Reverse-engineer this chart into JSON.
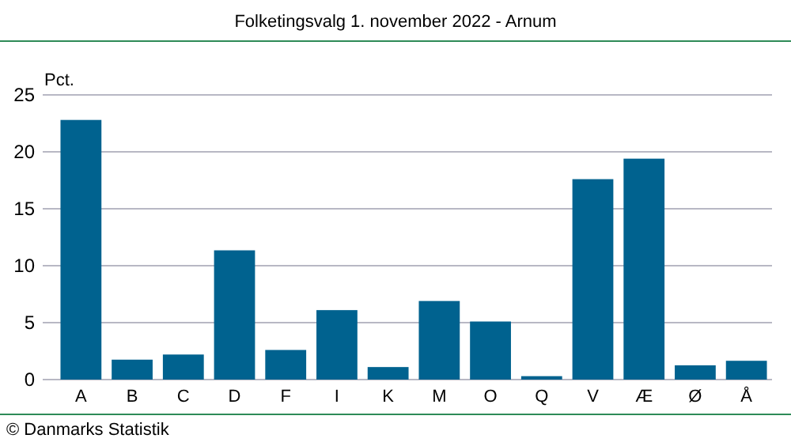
{
  "chart_data": {
    "type": "bar",
    "title": "Folketingsvalg 1. november 2022 - Arnum",
    "ylabel": "Pct.",
    "categories": [
      "A",
      "B",
      "C",
      "D",
      "F",
      "I",
      "K",
      "M",
      "O",
      "Q",
      "V",
      "Æ",
      "Ø",
      "Å"
    ],
    "values": [
      22.8,
      1.75,
      2.2,
      11.35,
      2.6,
      6.1,
      1.1,
      6.9,
      5.1,
      0.3,
      17.6,
      19.4,
      1.25,
      1.65
    ],
    "color": "#00628f",
    "ylim": [
      0,
      25
    ],
    "yticks": [
      0,
      5,
      10,
      15,
      20,
      25
    ],
    "grid": "y",
    "annotations": [
      "© Danmarks Statistik"
    ]
  }
}
